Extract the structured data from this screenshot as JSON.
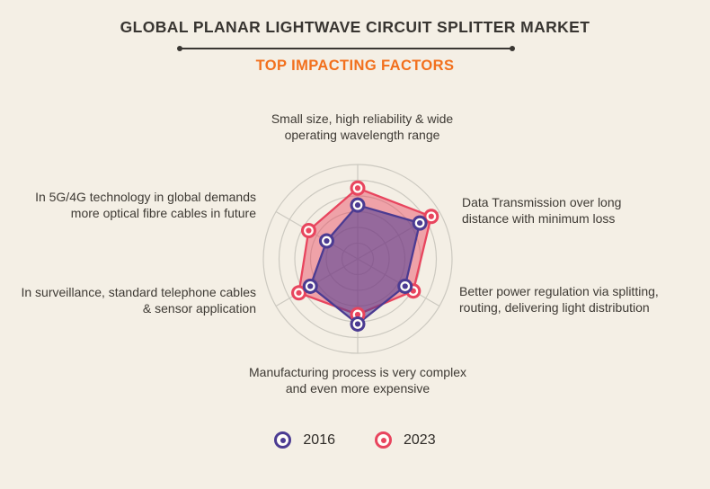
{
  "header": {
    "title": "GLOBAL PLANAR LIGHTWAVE CIRCUIT SPLITTER MARKET",
    "subtitle": "TOP IMPACTING FACTORS"
  },
  "theme": {
    "background": "#f4efe5",
    "title_color": "#383531",
    "subtitle_color": "#f2701d",
    "label_color": "#3e3a34",
    "grid_color": "#ccc9c0",
    "marker_inner": "#fffdf8"
  },
  "chart_data": {
    "type": "radar",
    "title": "Top impacting factors radar",
    "center": {
      "x": 398,
      "y": 288
    },
    "radius": 105,
    "levels": 6,
    "start_angle_deg": 90,
    "value_max": 100,
    "grid": true,
    "categories": [
      "Small size, high reliability & wide\noperating wavelength range",
      "Data Transmission over long\ndistance with minimum loss",
      "Better power regulation via splitting,\nrouting, delivering light distribution",
      "Manufacturing process is very complex\nand even more expensive",
      "In surveillance, standard telephone cables\n& sensor application",
      "In 5G/4G technology in global demands\nmore optical fibre cables in future"
    ],
    "series": [
      {
        "name": "2023",
        "color": "#e8455e",
        "fill_opacity": 0.45,
        "values": [
          75,
          90,
          68,
          59,
          72,
          60
        ]
      },
      {
        "name": "2016",
        "color": "#4b3b92",
        "fill_opacity": 0.55,
        "values": [
          57,
          76,
          58,
          69,
          58,
          38
        ]
      }
    ],
    "legend_position": "bottom",
    "legend": [
      {
        "label": "2016",
        "color": "#4b3b92"
      },
      {
        "label": "2023",
        "color": "#e8455e"
      }
    ]
  }
}
